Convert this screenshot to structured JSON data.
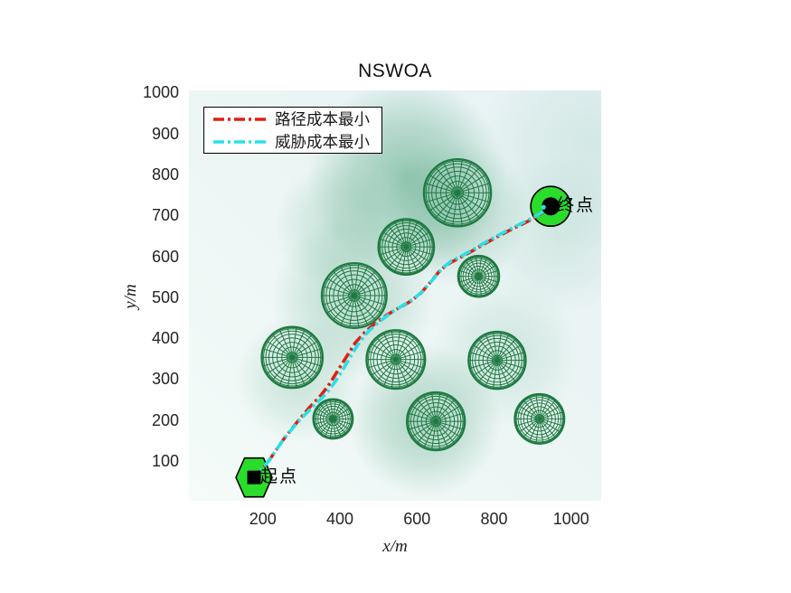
{
  "chart_data": {
    "type": "line",
    "title": "NSWOA",
    "xlabel": "x/m",
    "ylabel": "y/m",
    "xlim": [
      8,
      1078
    ],
    "ylim": [
      3,
      1005
    ],
    "xticks": [
      200,
      400,
      600,
      800,
      1000
    ],
    "yticks": [
      100,
      200,
      300,
      400,
      500,
      600,
      700,
      800,
      900,
      1000
    ],
    "grid": false,
    "legend_position": "top-left",
    "obstacle_color": "#1e7a42",
    "marker_fill": "#2bdd2b",
    "marker_stroke": "#000000",
    "background_tint": "#ebf5f4",
    "field_color": "#3f9a71",
    "series": [
      {
        "name": "路径成本最小",
        "color": "#e01f14",
        "style": "dash-dot",
        "points": [
          [
            177,
            60
          ],
          [
            215,
            100
          ],
          [
            252,
            151
          ],
          [
            287,
            193
          ],
          [
            320,
            230
          ],
          [
            351,
            261
          ],
          [
            374,
            290
          ],
          [
            397,
            325
          ],
          [
            419,
            358
          ],
          [
            440,
            389
          ],
          [
            466,
            416
          ],
          [
            494,
            438
          ],
          [
            524,
            458
          ],
          [
            555,
            475
          ],
          [
            585,
            491
          ],
          [
            611,
            511
          ],
          [
            637,
            539
          ],
          [
            660,
            566
          ],
          [
            684,
            583
          ],
          [
            712,
            597
          ],
          [
            745,
            614
          ],
          [
            778,
            632
          ],
          [
            813,
            650
          ],
          [
            848,
            667
          ],
          [
            883,
            683
          ],
          [
            916,
            700
          ],
          [
            947,
            722
          ]
        ]
      },
      {
        "name": "威胁成本最小",
        "color": "#29e0e8",
        "style": "dash-dot",
        "points": [
          [
            177,
            60
          ],
          [
            215,
            100
          ],
          [
            252,
            151
          ],
          [
            290,
            195
          ],
          [
            330,
            233
          ],
          [
            365,
            265
          ],
          [
            390,
            297
          ],
          [
            412,
            330
          ],
          [
            432,
            362
          ],
          [
            452,
            392
          ],
          [
            475,
            418
          ],
          [
            502,
            440
          ],
          [
            531,
            461
          ],
          [
            561,
            479
          ],
          [
            590,
            495
          ],
          [
            616,
            516
          ],
          [
            642,
            544
          ],
          [
            666,
            571
          ],
          [
            690,
            589
          ],
          [
            718,
            602
          ],
          [
            750,
            619
          ],
          [
            783,
            637
          ],
          [
            818,
            655
          ],
          [
            853,
            672
          ],
          [
            888,
            688
          ],
          [
            921,
            705
          ],
          [
            947,
            722
          ]
        ]
      }
    ],
    "obstacles": [
      {
        "x": 705,
        "y": 755,
        "r": 87
      },
      {
        "x": 572,
        "y": 623,
        "r": 72
      },
      {
        "x": 437,
        "y": 504,
        "r": 84
      },
      {
        "x": 760,
        "y": 551,
        "r": 53
      },
      {
        "x": 276,
        "y": 353,
        "r": 79
      },
      {
        "x": 545,
        "y": 348,
        "r": 76
      },
      {
        "x": 808,
        "y": 346,
        "r": 74
      },
      {
        "x": 382,
        "y": 203,
        "r": 51
      },
      {
        "x": 649,
        "y": 197,
        "r": 75
      },
      {
        "x": 918,
        "y": 203,
        "r": 64
      }
    ],
    "field_blobs": [
      {
        "x": 574,
        "y": 795,
        "r": 258,
        "alpha": 0.5
      },
      {
        "x": 703,
        "y": 707,
        "r": 190,
        "alpha": 0.32
      },
      {
        "x": 433,
        "y": 497,
        "r": 211,
        "alpha": 0.3
      },
      {
        "x": 620,
        "y": 199,
        "r": 200,
        "alpha": 0.38
      },
      {
        "x": 292,
        "y": 299,
        "r": 165,
        "alpha": 0.22
      },
      {
        "x": 395,
        "y": 674,
        "r": 165,
        "alpha": 0.22
      },
      {
        "x": 832,
        "y": 365,
        "r": 190,
        "alpha": 0.16
      },
      {
        "x": 972,
        "y": 652,
        "r": 211,
        "alpha": 0.13
      },
      {
        "x": 1045,
        "y": 873,
        "r": 280,
        "alpha": 0.12
      }
    ],
    "start": {
      "label": "起点",
      "x": 177,
      "y": 60,
      "marker": "hexagon"
    },
    "end": {
      "label": "终点",
      "x": 947,
      "y": 722,
      "marker": "circle"
    }
  }
}
